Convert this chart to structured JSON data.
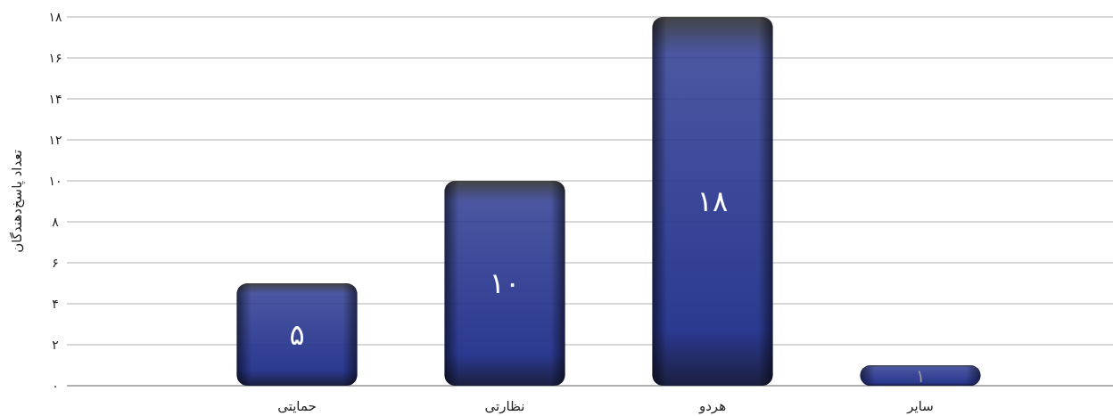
{
  "chart_data": {
    "type": "bar",
    "ylabel": "تعداد پاسخ‌دهندگان",
    "categories": [
      "حمایتی",
      "نظارتی",
      "هردو",
      "سایر"
    ],
    "values": [
      5,
      10,
      18,
      1
    ],
    "value_labels": [
      "۵",
      "۱۰",
      "۱۸",
      "۱"
    ],
    "color": "#2b3990",
    "ylim": [
      0,
      18
    ],
    "yticks": [
      {
        "value": 0,
        "label": "۰"
      },
      {
        "value": 2,
        "label": "۲"
      },
      {
        "value": 4,
        "label": "۴"
      },
      {
        "value": 6,
        "label": "۶"
      },
      {
        "value": 8,
        "label": "۸"
      },
      {
        "value": 10,
        "label": "۱۰"
      },
      {
        "value": 12,
        "label": "۱۲"
      },
      {
        "value": 14,
        "label": "۱۴"
      },
      {
        "value": 16,
        "label": "۱۶"
      },
      {
        "value": 18,
        "label": "۱۸"
      }
    ],
    "grid": "y"
  }
}
